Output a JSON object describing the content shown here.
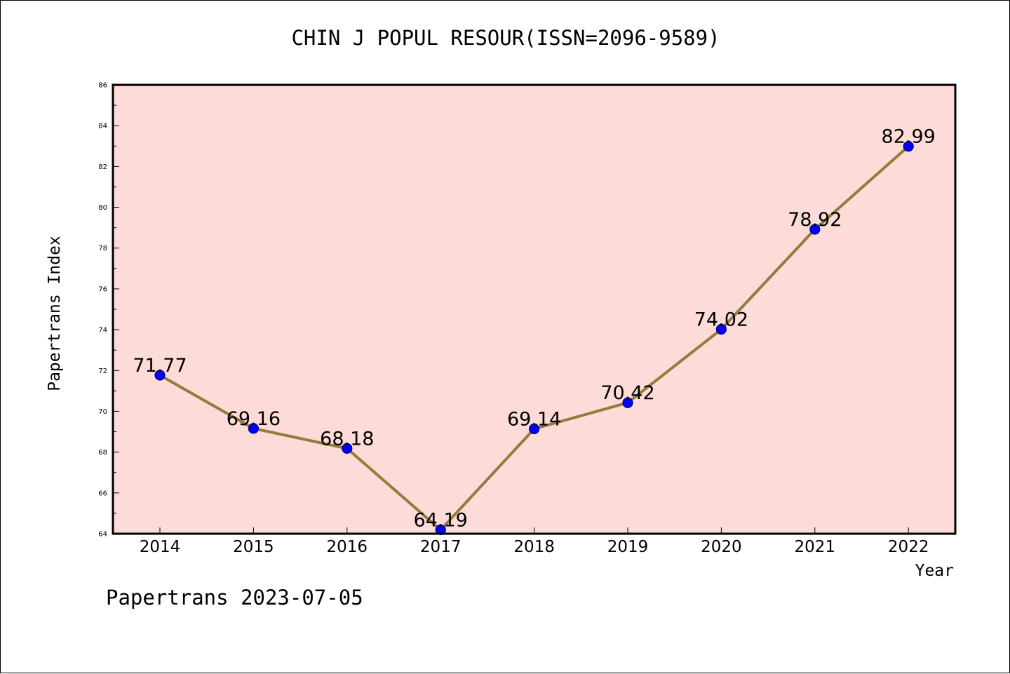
{
  "footer": {
    "label": "Papertrans 2023-07-05"
  },
  "colors": {
    "plot_background": "#fddbd8",
    "line": "#917d3c",
    "marker_fill": "#0000ff",
    "marker_edge": "#000080",
    "frame": "#000000"
  },
  "chart_data": {
    "type": "line",
    "title": "CHIN J POPUL RESOUR(ISSN=2096-9589)",
    "xlabel": "Year",
    "ylabel": "Papertrans Index",
    "x": [
      "2014",
      "2015",
      "2016",
      "2017",
      "2018",
      "2019",
      "2020",
      "2021",
      "2022"
    ],
    "series": [
      {
        "values": [
          71.77,
          69.16,
          68.18,
          64.19,
          69.14,
          70.42,
          74.02,
          78.92,
          82.99
        ],
        "labels": [
          "71.77",
          "69.16",
          "68.18",
          "64.19",
          "69.14",
          "70.42",
          "74.02",
          "78.92",
          "82.99"
        ]
      }
    ],
    "ylim": [
      64,
      86
    ],
    "yticks": [
      64,
      66,
      68,
      70,
      72,
      74,
      76,
      78,
      80,
      82,
      84,
      86
    ],
    "grid": false,
    "legend": "none"
  }
}
